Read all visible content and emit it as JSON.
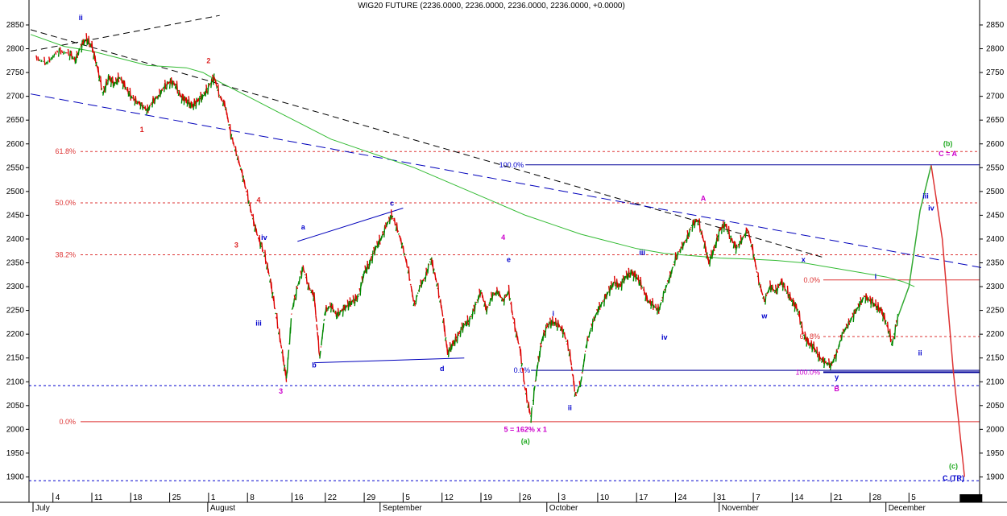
{
  "chart_data": {
    "type": "line",
    "title": "WIG20 FUTURE (2236.0000, 2236.0000, 2236.0000, 2236.0000, +0.0000)",
    "ylim": [
      1880,
      2890
    ],
    "y_ticks": [
      1900,
      1950,
      2000,
      2050,
      2100,
      2150,
      2200,
      2250,
      2300,
      2350,
      2400,
      2450,
      2500,
      2550,
      2600,
      2650,
      2700,
      2750,
      2800,
      2850
    ],
    "x_day_ticks": [
      {
        "label": "4",
        "t": 3
      },
      {
        "label": "11",
        "t": 10
      },
      {
        "label": "18",
        "t": 17
      },
      {
        "label": "25",
        "t": 24
      },
      {
        "label": "1",
        "t": 31
      },
      {
        "label": "8",
        "t": 38
      },
      {
        "label": "16",
        "t": 46
      },
      {
        "label": "22",
        "t": 52
      },
      {
        "label": "29",
        "t": 59
      },
      {
        "label": "5",
        "t": 66
      },
      {
        "label": "12",
        "t": 73
      },
      {
        "label": "19",
        "t": 80
      },
      {
        "label": "26",
        "t": 87
      },
      {
        "label": "3",
        "t": 94
      },
      {
        "label": "10",
        "t": 101
      },
      {
        "label": "17",
        "t": 108
      },
      {
        "label": "24",
        "t": 115
      },
      {
        "label": "31",
        "t": 122
      },
      {
        "label": "7",
        "t": 129
      },
      {
        "label": "14",
        "t": 136
      },
      {
        "label": "21",
        "t": 143
      },
      {
        "label": "28",
        "t": 150
      },
      {
        "label": "5",
        "t": 157
      }
    ],
    "x_month_labels": [
      {
        "label": "July",
        "t": 0
      },
      {
        "label": "August",
        "t": 31
      },
      {
        "label": "September",
        "t": 62
      },
      {
        "label": "October",
        "t": 92
      },
      {
        "label": "November",
        "t": 123
      },
      {
        "label": "December",
        "t": 153
      }
    ],
    "price_series": [
      [
        0,
        2780
      ],
      [
        2,
        2770
      ],
      [
        4,
        2795
      ],
      [
        6,
        2790
      ],
      [
        7,
        2775
      ],
      [
        8,
        2805
      ],
      [
        9,
        2820
      ],
      [
        10,
        2805
      ],
      [
        11,
        2760
      ],
      [
        12,
        2705
      ],
      [
        13,
        2740
      ],
      [
        14,
        2725
      ],
      [
        15,
        2740
      ],
      [
        16,
        2720
      ],
      [
        17,
        2700
      ],
      [
        18,
        2690
      ],
      [
        19,
        2680
      ],
      [
        20,
        2670
      ],
      [
        21,
        2690
      ],
      [
        22,
        2700
      ],
      [
        23,
        2720
      ],
      [
        24,
        2730
      ],
      [
        25,
        2725
      ],
      [
        26,
        2700
      ],
      [
        27,
        2690
      ],
      [
        28,
        2680
      ],
      [
        29,
        2690
      ],
      [
        30,
        2700
      ],
      [
        31,
        2720
      ],
      [
        32,
        2740
      ],
      [
        33,
        2700
      ],
      [
        34,
        2680
      ],
      [
        35,
        2620
      ],
      [
        36,
        2580
      ],
      [
        37,
        2540
      ],
      [
        38,
        2490
      ],
      [
        39,
        2440
      ],
      [
        40,
        2400
      ],
      [
        41,
        2370
      ],
      [
        42,
        2320
      ],
      [
        43,
        2250
      ],
      [
        44,
        2180
      ],
      [
        45,
        2105
      ],
      [
        46,
        2250
      ],
      [
        47,
        2300
      ],
      [
        48,
        2340
      ],
      [
        49,
        2300
      ],
      [
        50,
        2280
      ],
      [
        51,
        2150
      ],
      [
        52,
        2250
      ],
      [
        53,
        2260
      ],
      [
        54,
        2240
      ],
      [
        55,
        2250
      ],
      [
        56,
        2260
      ],
      [
        57,
        2270
      ],
      [
        58,
        2280
      ],
      [
        59,
        2330
      ],
      [
        60,
        2350
      ],
      [
        61,
        2380
      ],
      [
        62,
        2400
      ],
      [
        63,
        2430
      ],
      [
        64,
        2450
      ],
      [
        65,
        2420
      ],
      [
        66,
        2380
      ],
      [
        67,
        2330
      ],
      [
        68,
        2260
      ],
      [
        69,
        2300
      ],
      [
        70,
        2320
      ],
      [
        71,
        2360
      ],
      [
        72,
        2310
      ],
      [
        73,
        2250
      ],
      [
        74,
        2160
      ],
      [
        75,
        2180
      ],
      [
        76,
        2200
      ],
      [
        77,
        2220
      ],
      [
        78,
        2230
      ],
      [
        79,
        2260
      ],
      [
        80,
        2290
      ],
      [
        81,
        2250
      ],
      [
        82,
        2280
      ],
      [
        83,
        2290
      ],
      [
        84,
        2270
      ],
      [
        85,
        2290
      ],
      [
        86,
        2220
      ],
      [
        87,
        2170
      ],
      [
        88,
        2080
      ],
      [
        89,
        2025
      ],
      [
        90,
        2120
      ],
      [
        91,
        2190
      ],
      [
        92,
        2220
      ],
      [
        93,
        2225
      ],
      [
        94,
        2220
      ],
      [
        95,
        2200
      ],
      [
        96,
        2160
      ],
      [
        97,
        2070
      ],
      [
        98,
        2100
      ],
      [
        99,
        2180
      ],
      [
        100,
        2220
      ],
      [
        101,
        2250
      ],
      [
        102,
        2270
      ],
      [
        103,
        2290
      ],
      [
        104,
        2310
      ],
      [
        105,
        2300
      ],
      [
        106,
        2320
      ],
      [
        107,
        2330
      ],
      [
        108,
        2320
      ],
      [
        109,
        2300
      ],
      [
        110,
        2270
      ],
      [
        111,
        2260
      ],
      [
        112,
        2250
      ],
      [
        113,
        2290
      ],
      [
        114,
        2320
      ],
      [
        115,
        2360
      ],
      [
        116,
        2380
      ],
      [
        117,
        2400
      ],
      [
        118,
        2430
      ],
      [
        119,
        2440
      ],
      [
        120,
        2400
      ],
      [
        121,
        2350
      ],
      [
        122,
        2380
      ],
      [
        123,
        2420
      ],
      [
        124,
        2430
      ],
      [
        125,
        2400
      ],
      [
        126,
        2380
      ],
      [
        127,
        2400
      ],
      [
        128,
        2420
      ],
      [
        129,
        2370
      ],
      [
        130,
        2310
      ],
      [
        131,
        2270
      ],
      [
        132,
        2300
      ],
      [
        133,
        2290
      ],
      [
        134,
        2310
      ],
      [
        135,
        2290
      ],
      [
        136,
        2270
      ],
      [
        137,
        2250
      ],
      [
        138,
        2200
      ],
      [
        139,
        2180
      ],
      [
        140,
        2170
      ],
      [
        141,
        2150
      ],
      [
        142,
        2140
      ],
      [
        143,
        2135
      ],
      [
        144,
        2160
      ],
      [
        145,
        2200
      ],
      [
        146,
        2220
      ],
      [
        147,
        2240
      ],
      [
        148,
        2260
      ],
      [
        149,
        2280
      ],
      [
        150,
        2270
      ],
      [
        151,
        2260
      ],
      [
        152,
        2250
      ],
      [
        153,
        2220
      ],
      [
        154,
        2180
      ],
      [
        155,
        2236
      ]
    ],
    "ma_series": [
      [
        -1,
        2830
      ],
      [
        5,
        2805
      ],
      [
        10,
        2795
      ],
      [
        15,
        2780
      ],
      [
        20,
        2765
      ],
      [
        27,
        2760
      ],
      [
        30,
        2750
      ],
      [
        33,
        2730
      ],
      [
        38,
        2700
      ],
      [
        43,
        2670
      ],
      [
        48,
        2640
      ],
      [
        53,
        2610
      ],
      [
        58,
        2590
      ],
      [
        63,
        2570
      ],
      [
        68,
        2550
      ],
      [
        73,
        2525
      ],
      [
        78,
        2500
      ],
      [
        83,
        2475
      ],
      [
        88,
        2450
      ],
      [
        93,
        2430
      ],
      [
        98,
        2410
      ],
      [
        103,
        2395
      ],
      [
        108,
        2380
      ],
      [
        113,
        2370
      ],
      [
        118,
        2365
      ],
      [
        123,
        2360
      ],
      [
        128,
        2358
      ],
      [
        133,
        2355
      ],
      [
        138,
        2350
      ],
      [
        143,
        2340
      ],
      [
        148,
        2330
      ],
      [
        153,
        2320
      ],
      [
        156,
        2310
      ],
      [
        158,
        2300
      ]
    ],
    "projection": [
      [
        155,
        2236
      ],
      [
        157,
        2300
      ],
      [
        159,
        2460
      ],
      [
        161,
        2555
      ],
      [
        163,
        2400
      ],
      [
        165,
        2120
      ],
      [
        167,
        1900
      ]
    ],
    "fib_left": [
      {
        "label": "61.8%",
        "y": 2584
      },
      {
        "label": "50.0%",
        "y": 2476
      },
      {
        "label": "38.2%",
        "y": 2367
      },
      {
        "label": "0.0%",
        "y": 2016
      }
    ],
    "fib_right": [
      {
        "label": "100.0%",
        "y": 2556
      },
      {
        "label": "0.0%",
        "y": 2314
      },
      {
        "label": "61.8%",
        "y": 2195
      },
      {
        "label": "0.0%",
        "y": 2124
      },
      {
        "label": "100.0%",
        "y": 2120
      }
    ],
    "wave_labels": [
      {
        "text": "ii",
        "t": 8,
        "y": 2860,
        "color": "#0000cc"
      },
      {
        "text": "1",
        "t": 19,
        "y": 2625,
        "color": "#dd2222"
      },
      {
        "text": "2",
        "t": 31,
        "y": 2770,
        "color": "#dd2222"
      },
      {
        "text": "4",
        "t": 40,
        "y": 2477,
        "color": "#dd2222"
      },
      {
        "text": "3",
        "t": 36,
        "y": 2382,
        "color": "#dd2222"
      },
      {
        "text": "iv",
        "t": 41,
        "y": 2398,
        "color": "#0000cc"
      },
      {
        "text": "iii",
        "t": 40,
        "y": 2218,
        "color": "#0000cc"
      },
      {
        "text": "3",
        "t": 44,
        "y": 2075,
        "color": "#cc00cc"
      },
      {
        "text": "a",
        "t": 48,
        "y": 2420,
        "color": "#0000cc"
      },
      {
        "text": "b",
        "t": 50,
        "y": 2130,
        "color": "#0000cc"
      },
      {
        "text": "c",
        "t": 64,
        "y": 2470,
        "color": "#0000cc"
      },
      {
        "text": "d",
        "t": 73,
        "y": 2122,
        "color": "#0000cc"
      },
      {
        "text": "4",
        "t": 84,
        "y": 2398,
        "color": "#cc00cc"
      },
      {
        "text": "e",
        "t": 85,
        "y": 2352,
        "color": "#0000cc"
      },
      {
        "text": "i",
        "t": 93,
        "y": 2238,
        "color": "#0000cc"
      },
      {
        "text": "ii",
        "t": 96,
        "y": 2040,
        "color": "#0000cc"
      },
      {
        "text": "iii",
        "t": 109,
        "y": 2366,
        "color": "#0000cc"
      },
      {
        "text": "iv",
        "t": 113,
        "y": 2188,
        "color": "#0000cc"
      },
      {
        "text": "A",
        "t": 120,
        "y": 2480,
        "color": "#cc00cc"
      },
      {
        "text": "w",
        "t": 131,
        "y": 2233,
        "color": "#0000cc"
      },
      {
        "text": "x",
        "t": 138,
        "y": 2352,
        "color": "#0000cc"
      },
      {
        "text": "y",
        "t": 144,
        "y": 2105,
        "color": "#0000cc"
      },
      {
        "text": "B",
        "t": 144,
        "y": 2080,
        "color": "#cc00cc"
      },
      {
        "text": "i",
        "t": 151,
        "y": 2316,
        "color": "#0000cc"
      },
      {
        "text": "ii",
        "t": 159,
        "y": 2155,
        "color": "#0000cc"
      },
      {
        "text": "iii",
        "t": 160,
        "y": 2485,
        "color": "#0000cc"
      },
      {
        "text": "iv",
        "t": 161,
        "y": 2460,
        "color": "#0000cc"
      },
      {
        "text": "(b)",
        "t": 164,
        "y": 2595,
        "color": "#22aa22"
      },
      {
        "text": "C = A",
        "t": 164,
        "y": 2574,
        "color": "#cc00cc"
      },
      {
        "text": "5 = 162% x 1",
        "t": 88,
        "y": 1995,
        "color": "#cc00cc"
      },
      {
        "text": "(a)",
        "t": 88,
        "y": 1970,
        "color": "#22aa22"
      },
      {
        "text": "(c)",
        "t": 165,
        "y": 1918,
        "color": "#22aa22"
      },
      {
        "text": "C (TR)",
        "t": 165,
        "y": 1892,
        "color": "#0000cc"
      }
    ],
    "colors": {
      "up": "#008800",
      "down": "#dd0000",
      "ma": "#33bb33",
      "projection_up": "#33aa33",
      "projection_down": "#dd3333",
      "fib": "#dd3333",
      "trend_blue": "#0000bb",
      "trend_black": "#000000",
      "hline_blue": "#000099",
      "dotted_blue": "#0000cc"
    }
  }
}
